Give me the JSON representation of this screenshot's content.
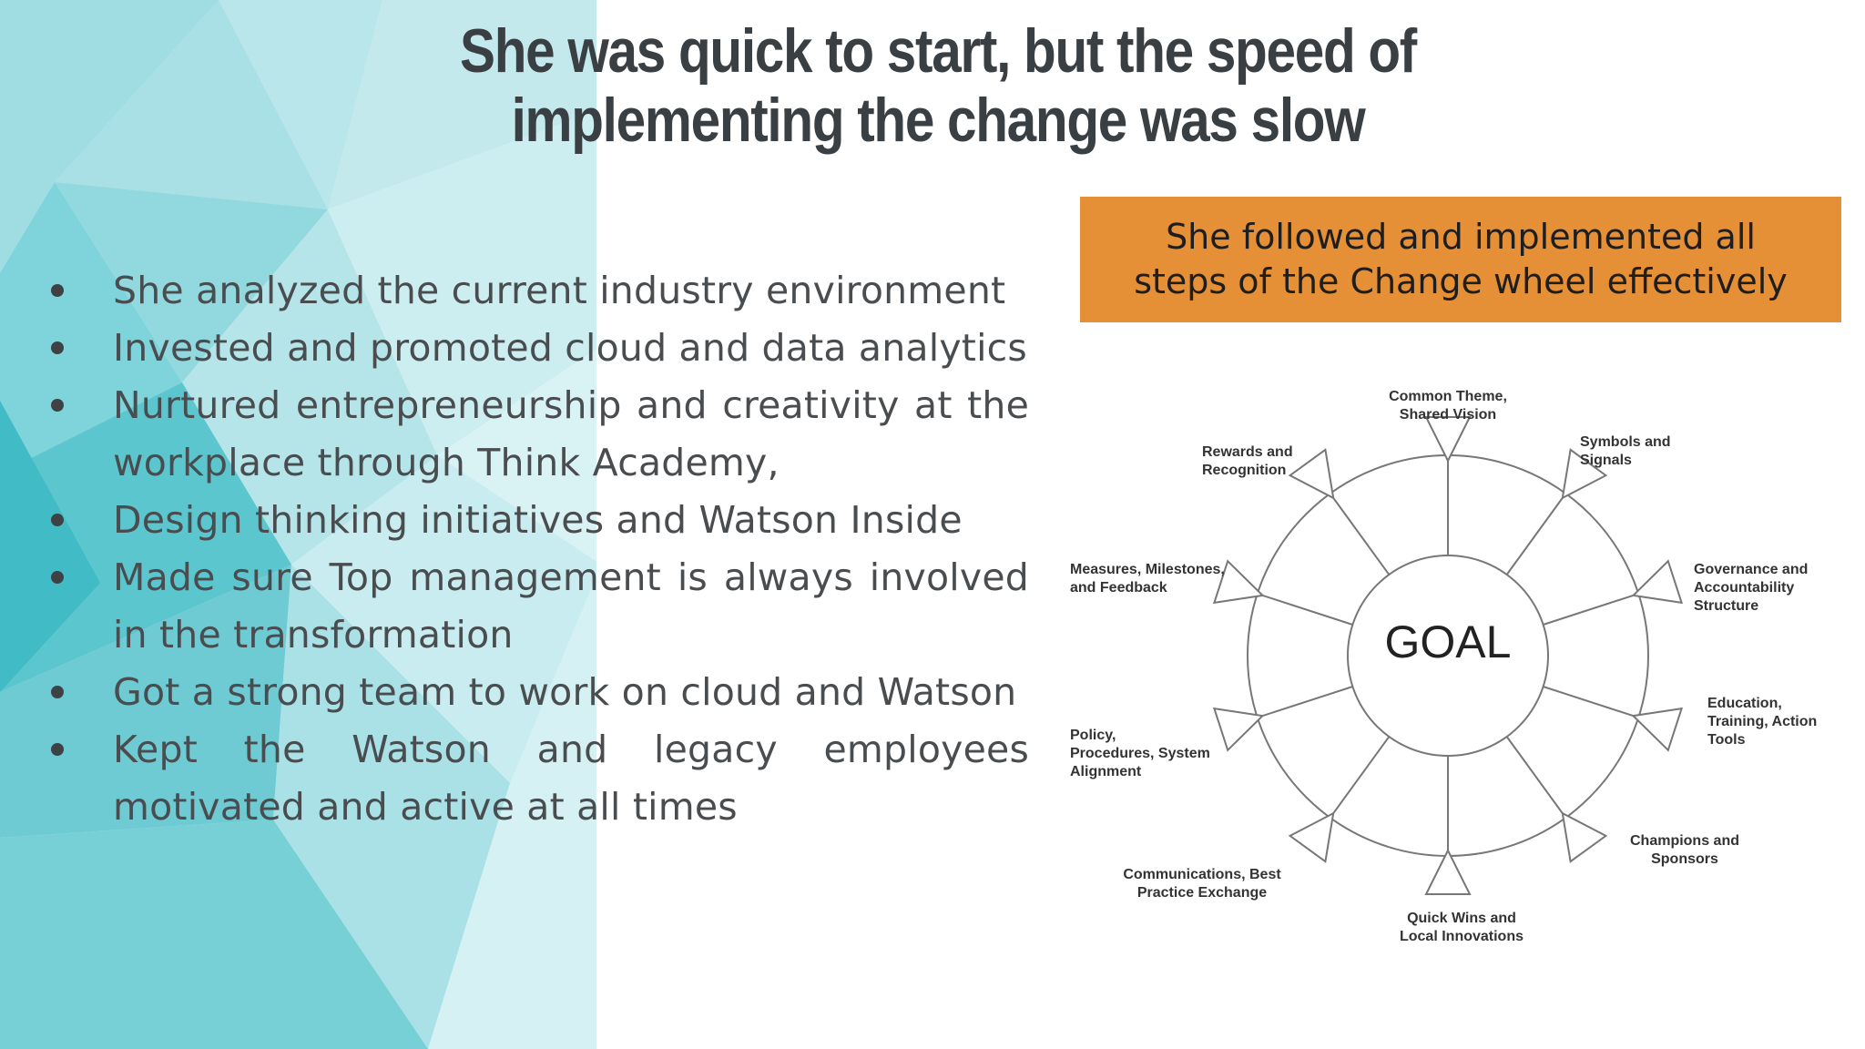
{
  "title": {
    "line1": "She was quick to start, but the speed of",
    "line2": "implementing the change was slow"
  },
  "bullets": [
    "She analyzed the current industry environment",
    "Invested and promoted cloud and data analytics",
    "Nurtured entrepreneurship and creativity at the workplace through Think Academy,",
    "Design thinking initiatives and Watson Inside",
    "Made sure Top management is always involved in the transformation",
    "Got a strong team to work on cloud and Watson",
    "Kept the Watson and legacy employees motivated and active at all times"
  ],
  "callout": "She followed and implemented all steps of the Change wheel effectively",
  "wheel": {
    "center_label": "GOAL",
    "segments": [
      "Common Theme, Shared Vision",
      "Symbols and Signals",
      "Governance and Accountability Structure",
      "Education, Training, Action Tools",
      "Champions and Sponsors",
      "Quick Wins and Local Innovations",
      "Communications, Best Practice Exchange",
      "Policy, Procedures, System Alignment",
      "Measures, Milestones, and Feedback",
      "Rewards and Recognition"
    ]
  },
  "colors": {
    "accent": "#e58f37",
    "title_text": "#3a3f43",
    "bg_teal": "#5fc6cf"
  }
}
